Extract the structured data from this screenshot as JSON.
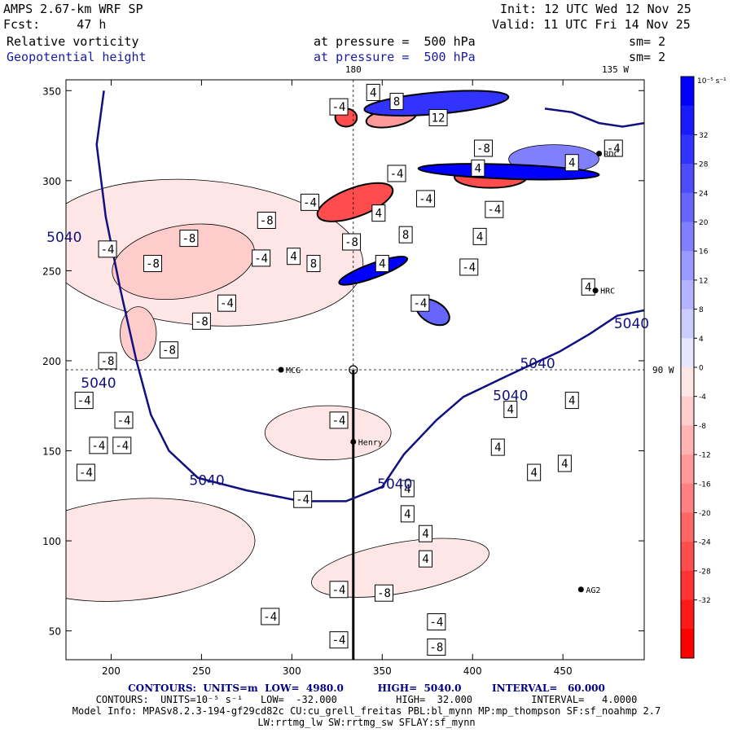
{
  "header": {
    "model": "AMPS 2.67-km WRF SP",
    "fcst": "Fcst:     47 h",
    "init": "Init: 12 UTC Wed 12 Nov 25",
    "valid": "Valid: 11 UTC Fri 14 Nov 25",
    "field1": "Relative vorticity",
    "field2": "Geopotential height",
    "pressure1": "at pressure =  500 hPa",
    "pressure2": "at pressure =  500 hPa",
    "sm1": "sm= 2",
    "sm2": "sm= 2"
  },
  "footer": {
    "line1": "CONTOURS:  UNITS=m  LOW=  4980.0          HIGH=  5040.0         INTERVAL=   60.000",
    "line2": "CONTOURS:  UNITS=10⁻⁵ s⁻¹   LOW=  -32.000          HIGH=  32.000          INTERVAL=   4.0000",
    "line3": "Model Info: MPASv8.2.3-194-gf29cd82c CU:cu_grell_freitas PBL:bl_mynn MP:mp_thompson SF:sf_noahmp 2.7",
    "line4": "LW:rrtmg_lw SW:rrtmg_sw SFLAY:sf_mynn"
  },
  "colors": {
    "height_contour": "#101080",
    "vort_outline": "#000000",
    "grid_line": "#000000"
  },
  "chart_data": {
    "type": "heatmap",
    "title": "Relative vorticity and Geopotential height at 500 hPa",
    "xlabel": "",
    "ylabel": "",
    "xlim": [
      175,
      495
    ],
    "ylim": [
      34,
      356
    ],
    "x_ticks": [
      200,
      250,
      300,
      350,
      400,
      450
    ],
    "y_ticks": [
      50,
      100,
      150,
      200,
      250,
      300,
      350
    ],
    "top_labels": [
      {
        "text": "180",
        "x": 334
      },
      {
        "text": "135 W",
        "x": 479
      }
    ],
    "side_label": {
      "text": "90 W",
      "y": 195
    },
    "reference_lines": {
      "vertical_x": 334,
      "horizontal_y": 195
    },
    "colorbar": {
      "units": "10⁻⁵ s⁻¹",
      "ticks": [
        "32",
        "28",
        "24",
        "20",
        "16",
        "12",
        "8",
        "4",
        "0",
        "-4",
        "-8",
        "-12",
        "-16",
        "-20",
        "-24",
        "-28",
        "-32"
      ],
      "colors": [
        "#0000ff",
        "#1a1aff",
        "#3333ff",
        "#4d4dff",
        "#6666ff",
        "#8080ff",
        "#9999ff",
        "#b3b3ff",
        "#ccccff",
        "#e6e6ff",
        "#ffe6e6",
        "#ffcccc",
        "#ffb3b3",
        "#ff9999",
        "#ff8080",
        "#ff6666",
        "#ff4d4d",
        "#ff3333",
        "#ff1a1a",
        "#ff0000"
      ]
    },
    "stations": [
      {
        "name": "MCG",
        "x": 294,
        "y": 195
      },
      {
        "name": "Henry",
        "x": 334,
        "y": 155
      },
      {
        "name": "HRC",
        "x": 468,
        "y": 239
      },
      {
        "name": "AG2",
        "x": 460,
        "y": 73
      },
      {
        "name": "RDC",
        "x": 470,
        "y": 315
      }
    ],
    "height_contour": {
      "value": "5040",
      "path": [
        [
          196,
          350
        ],
        [
          192,
          320
        ],
        [
          197,
          280
        ],
        [
          205,
          240
        ],
        [
          214,
          200
        ],
        [
          222,
          170
        ],
        [
          232,
          150
        ],
        [
          248,
          135
        ],
        [
          275,
          128
        ],
        [
          305,
          122
        ],
        [
          330,
          122
        ],
        [
          350,
          130
        ],
        [
          362,
          148
        ],
        [
          380,
          167
        ],
        [
          395,
          180
        ],
        [
          420,
          192
        ],
        [
          448,
          205
        ],
        [
          465,
          215
        ],
        [
          480,
          225
        ],
        [
          495,
          228
        ]
      ],
      "path_ne": [
        [
          440,
          340
        ],
        [
          455,
          338
        ],
        [
          470,
          332
        ],
        [
          483,
          330
        ],
        [
          495,
          332
        ]
      ],
      "labels": [
        {
          "text": "5040",
          "x": 174,
          "y": 266
        },
        {
          "text": "5040",
          "x": 193,
          "y": 185
        },
        {
          "text": "5040",
          "x": 253,
          "y": 131
        },
        {
          "text": "5040",
          "x": 357,
          "y": 129
        },
        {
          "text": "5040",
          "x": 421,
          "y": 178
        },
        {
          "text": "5040",
          "x": 436,
          "y": 196
        },
        {
          "text": "5040",
          "x": 488,
          "y": 218
        }
      ]
    },
    "vorticity_labels": [
      {
        "text": "-4",
        "x": 326,
        "y": 341
      },
      {
        "text": "4",
        "x": 345,
        "y": 349
      },
      {
        "text": "8",
        "x": 358,
        "y": 344
      },
      {
        "text": "12",
        "x": 381,
        "y": 335
      },
      {
        "text": "-4",
        "x": 358,
        "y": 304
      },
      {
        "text": "-4",
        "x": 374,
        "y": 290
      },
      {
        "text": "-4",
        "x": 310,
        "y": 288
      },
      {
        "text": "8",
        "x": 363,
        "y": 270
      },
      {
        "text": "-8",
        "x": 406,
        "y": 318
      },
      {
        "text": "4",
        "x": 403,
        "y": 307
      },
      {
        "text": "4",
        "x": 455,
        "y": 310
      },
      {
        "text": "4",
        "x": 404,
        "y": 269
      },
      {
        "text": "4",
        "x": 348,
        "y": 282
      },
      {
        "text": "-8",
        "x": 333,
        "y": 266
      },
      {
        "text": "8",
        "x": 312,
        "y": 254
      },
      {
        "text": "4",
        "x": 350,
        "y": 254
      },
      {
        "text": "-4",
        "x": 371,
        "y": 232
      },
      {
        "text": "-4",
        "x": 398,
        "y": 252
      },
      {
        "text": "-4",
        "x": 412,
        "y": 284
      },
      {
        "text": "-4",
        "x": 478,
        "y": 318
      },
      {
        "text": "4",
        "x": 464,
        "y": 241
      },
      {
        "text": "-8",
        "x": 286,
        "y": 278
      },
      {
        "text": "-4",
        "x": 283,
        "y": 257
      },
      {
        "text": "4",
        "x": 301,
        "y": 258
      },
      {
        "text": "-8",
        "x": 243,
        "y": 268
      },
      {
        "text": "-8",
        "x": 223,
        "y": 254
      },
      {
        "text": "-4",
        "x": 198,
        "y": 262
      },
      {
        "text": "-4",
        "x": 264,
        "y": 232
      },
      {
        "text": "-8",
        "x": 250,
        "y": 222
      },
      {
        "text": "-8",
        "x": 232,
        "y": 206
      },
      {
        "text": "-8",
        "x": 198,
        "y": 200
      },
      {
        "text": "-4",
        "x": 185,
        "y": 178
      },
      {
        "text": "-4",
        "x": 207,
        "y": 167
      },
      {
        "text": "-4",
        "x": 193,
        "y": 153
      },
      {
        "text": "-4",
        "x": 206,
        "y": 153
      },
      {
        "text": "-4",
        "x": 186,
        "y": 138
      },
      {
        "text": "-4",
        "x": 326,
        "y": 167
      },
      {
        "text": "-4",
        "x": 306,
        "y": 123
      },
      {
        "text": "4",
        "x": 364,
        "y": 129
      },
      {
        "text": "4",
        "x": 364,
        "y": 115
      },
      {
        "text": "4",
        "x": 374,
        "y": 104
      },
      {
        "text": "4",
        "x": 374,
        "y": 90
      },
      {
        "text": "-8",
        "x": 351,
        "y": 71
      },
      {
        "text": "-4",
        "x": 380,
        "y": 55
      },
      {
        "text": "-8",
        "x": 380,
        "y": 41
      },
      {
        "text": "-4",
        "x": 326,
        "y": 73
      },
      {
        "text": "-4",
        "x": 288,
        "y": 58
      },
      {
        "text": "-4",
        "x": 326,
        "y": 45
      },
      {
        "text": "4",
        "x": 421,
        "y": 173
      },
      {
        "text": "4",
        "x": 455,
        "y": 178
      },
      {
        "text": "4",
        "x": 414,
        "y": 152
      },
      {
        "text": "4",
        "x": 451,
        "y": 143
      },
      {
        "text": "4",
        "x": 434,
        "y": 138
      }
    ],
    "vorticity_features": [
      {
        "sign": "neg",
        "magnitude": 8,
        "center": [
          240,
          255
        ],
        "radius": [
          20,
          40
        ],
        "rotate": 80
      },
      {
        "sign": "neg",
        "magnitude": 8,
        "center": [
          215,
          215
        ],
        "radius": [
          10,
          15
        ],
        "rotate": 0
      },
      {
        "sign": "neg",
        "magnitude": 4,
        "center": [
          320,
          160
        ],
        "radius": [
          15,
          35
        ],
        "rotate": 90
      },
      {
        "sign": "neg",
        "magnitude": 4,
        "center": [
          360,
          85
        ],
        "radius": [
          14,
          50
        ],
        "rotate": 80
      },
      {
        "sign": "neg",
        "magnitude": 4,
        "center": [
          250,
          260
        ],
        "radius": [
          40,
          90
        ],
        "rotate": 95
      },
      {
        "sign": "neg",
        "magnitude": 4,
        "center": [
          210,
          95
        ],
        "radius": [
          28,
          70
        ],
        "rotate": 85
      },
      {
        "sign": "neg",
        "magnitude": 28,
        "center": [
          335,
          288
        ],
        "radius": [
          22,
          8
        ],
        "rotate": -20
      },
      {
        "sign": "neg",
        "magnitude": 28,
        "center": [
          410,
          302
        ],
        "radius": [
          20,
          6
        ],
        "rotate": 0
      },
      {
        "sign": "neg",
        "magnitude": 28,
        "center": [
          330,
          335
        ],
        "radius": [
          6,
          5
        ],
        "rotate": 0
      },
      {
        "sign": "neg",
        "magnitude": 16,
        "center": [
          355,
          335
        ],
        "radius": [
          14,
          5
        ],
        "rotate": -10
      },
      {
        "sign": "pos",
        "magnitude": 32,
        "center": [
          420,
          305
        ],
        "radius": [
          50,
          4
        ],
        "rotate": 2
      },
      {
        "sign": "pos",
        "magnitude": 32,
        "center": [
          345,
          250
        ],
        "radius": [
          20,
          4
        ],
        "rotate": -20
      },
      {
        "sign": "pos",
        "magnitude": 24,
        "center": [
          380,
          343
        ],
        "radius": [
          40,
          6
        ],
        "rotate": -5
      },
      {
        "sign": "pos",
        "magnitude": 16,
        "center": [
          378,
          227
        ],
        "radius": [
          10,
          6
        ],
        "rotate": 30
      },
      {
        "sign": "pos",
        "magnitude": 12,
        "center": [
          445,
          312
        ],
        "radius": [
          25,
          8
        ],
        "rotate": 0
      }
    ]
  }
}
